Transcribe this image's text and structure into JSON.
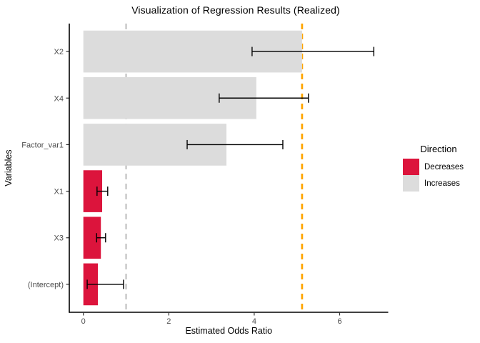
{
  "figure": {
    "background": "#FFFFFF"
  },
  "chart_data": {
    "type": "bar",
    "orientation": "horizontal",
    "title": "Visualization of Regression Results (Realized)",
    "xlabel": "Estimated Odds Ratio",
    "ylabel": "Variables",
    "xlim": [
      0,
      7.1
    ],
    "xticks": [
      0,
      2,
      4,
      6
    ],
    "grid": false,
    "theme": "classic",
    "categories_top_to_bottom": [
      "X2",
      "X4",
      "Factor_var1",
      "X1",
      "X3",
      "(Intercept)"
    ],
    "bars": [
      {
        "label": "X2",
        "value": 5.12,
        "ci_low": 3.95,
        "ci_high": 6.8,
        "direction": "Increases"
      },
      {
        "label": "X4",
        "value": 4.05,
        "ci_low": 3.18,
        "ci_high": 5.27,
        "direction": "Increases"
      },
      {
        "label": "Factor_var1",
        "value": 3.35,
        "ci_low": 2.43,
        "ci_high": 4.67,
        "direction": "Increases"
      },
      {
        "label": "X1",
        "value": 0.44,
        "ci_low": 0.32,
        "ci_high": 0.57,
        "direction": "Decreases"
      },
      {
        "label": "X3",
        "value": 0.41,
        "ci_low": 0.31,
        "ci_high": 0.52,
        "direction": "Decreases"
      },
      {
        "label": "(Intercept)",
        "value": 0.34,
        "ci_low": 0.09,
        "ci_high": 0.94,
        "direction": "Decreases"
      }
    ],
    "reference_lines": [
      {
        "x": 1.0,
        "color": "#BBBBBB",
        "style": "dashed",
        "name": "null-effect-reference-line"
      },
      {
        "x": 5.12,
        "color": "#FFA500",
        "style": "dashed",
        "name": "max-estimate-reference-line"
      }
    ],
    "colors": {
      "Decreases": "#DC143C",
      "Increases": "#DCDCDC"
    },
    "text_colors": {
      "axis_ticks": "#4D4D4D",
      "axis_titles": "#000000",
      "title": "#000000"
    },
    "legend": {
      "title": "Direction",
      "position": "right",
      "items": [
        {
          "label": "Decreases",
          "color": "#DC143C"
        },
        {
          "label": "Increases",
          "color": "#DCDCDC"
        }
      ]
    }
  }
}
